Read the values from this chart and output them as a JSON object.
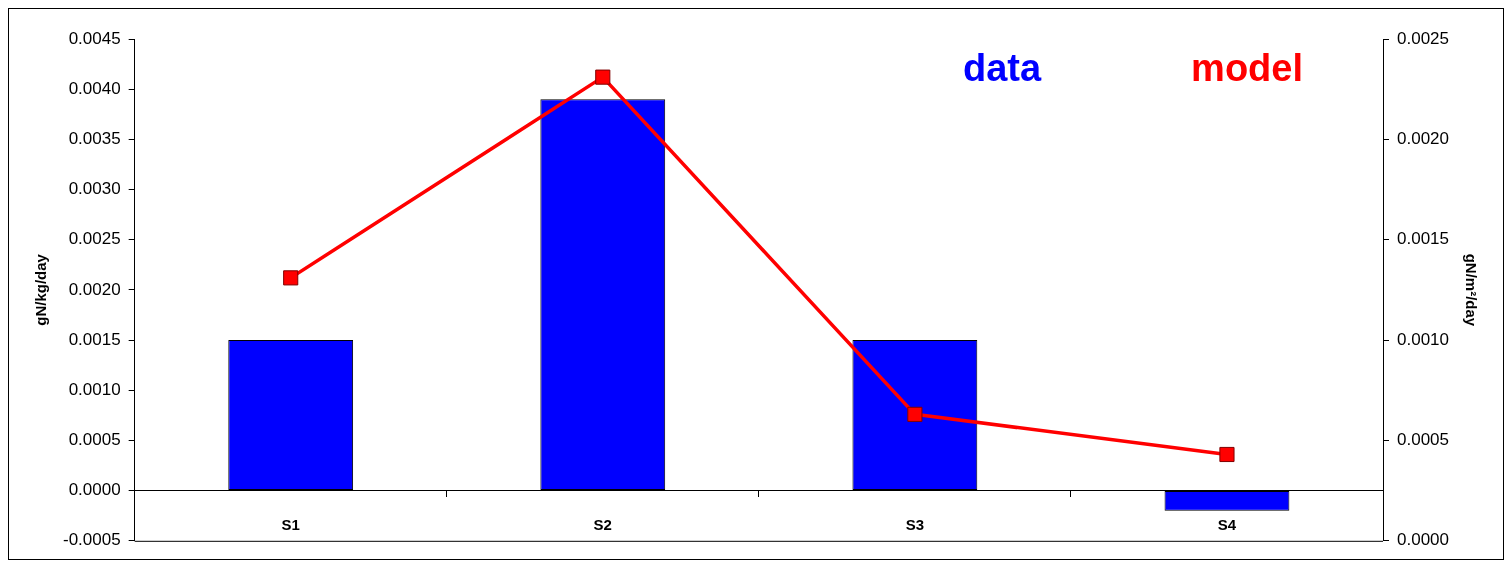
{
  "chart_data": {
    "type": "bar",
    "categories": [
      "S1",
      "S2",
      "S3",
      "S4"
    ],
    "ylabel": "gN/kg/day",
    "y2label": "gN/m²/day",
    "ylim": [
      -0.0005,
      0.0045
    ],
    "yticks": [
      {
        "value": -0.0005,
        "label": "-0.0005"
      },
      {
        "value": 0,
        "label": "0.0000"
      },
      {
        "value": 0.0005,
        "label": "0.0005"
      },
      {
        "value": 0.001,
        "label": "0.0010"
      },
      {
        "value": 0.0015,
        "label": "0.0015"
      },
      {
        "value": 0.002,
        "label": "0.0020"
      },
      {
        "value": 0.0025,
        "label": "0.0025"
      },
      {
        "value": 0.003,
        "label": "0.0030"
      },
      {
        "value": 0.0035,
        "label": "0.0035"
      },
      {
        "value": 0.004,
        "label": "0.0040"
      },
      {
        "value": 0.0045,
        "label": "0.0045"
      }
    ],
    "y2lim": [
      0,
      0.0025
    ],
    "y2ticks": [
      {
        "value": 0,
        "label": "0.0000"
      },
      {
        "value": 0.0005,
        "label": "0.0005"
      },
      {
        "value": 0.001,
        "label": "0.0010"
      },
      {
        "value": 0.0015,
        "label": "0.0015"
      },
      {
        "value": 0.002,
        "label": "0.0020"
      },
      {
        "value": 0.0025,
        "label": "0.0025"
      }
    ],
    "series": [
      {
        "name": "data",
        "color": "#0000ff",
        "values": [
          0.0015,
          0.0039,
          0.0015,
          -0.0002
        ]
      },
      {
        "name": "model",
        "type": "line",
        "axis": "y2",
        "color": "#ff0000",
        "values": [
          0.00131,
          0.00231,
          0.00063,
          0.00043
        ]
      }
    ],
    "marker": "square",
    "legend": "top right"
  }
}
